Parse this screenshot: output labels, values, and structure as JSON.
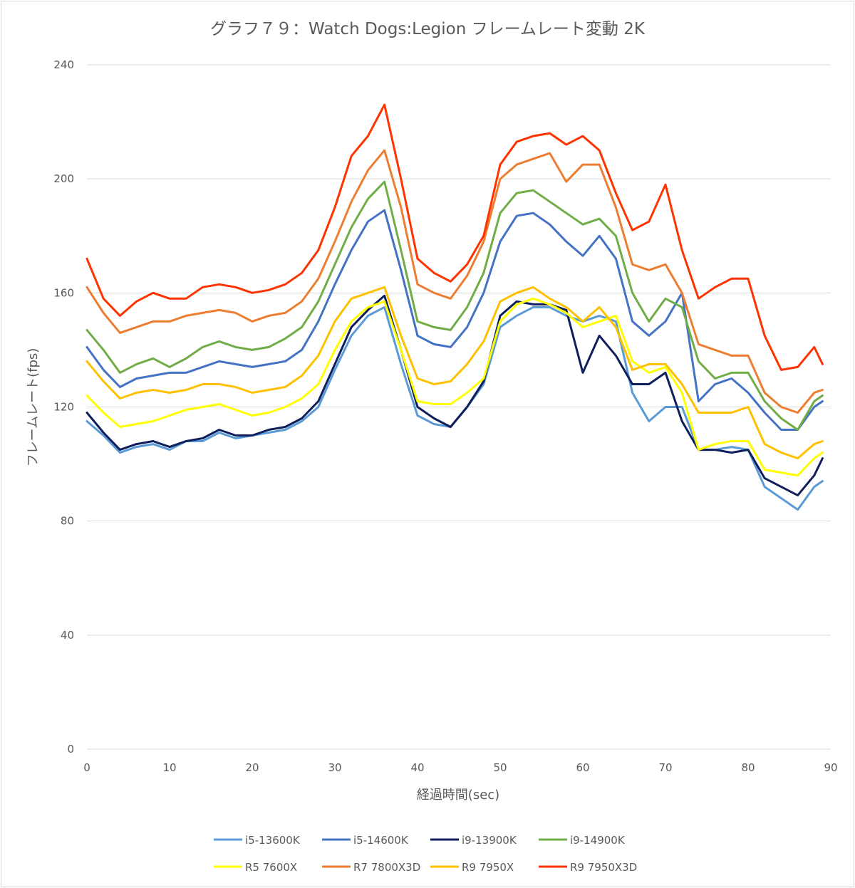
{
  "chart_data": {
    "type": "line",
    "title": "グラフ７９：Watch Dogs:Legion フレームレート変動 2K",
    "xlabel": "経過時間(sec)",
    "ylabel": "フレームレート(fps)",
    "xlim": [
      0,
      90
    ],
    "ylim": [
      0,
      240
    ],
    "xticks": [
      "0",
      "10",
      "20",
      "30",
      "40",
      "50",
      "60",
      "70",
      "80",
      "90"
    ],
    "yticks": [
      "0",
      "40",
      "80",
      "120",
      "160",
      "200",
      "240"
    ],
    "grid": true,
    "legend_position": "bottom",
    "series": [
      {
        "name": "i5-13600K",
        "color": "#5B9BD5",
        "x": [
          0,
          2,
          4,
          6,
          8,
          10,
          12,
          14,
          16,
          18,
          20,
          22,
          24,
          26,
          28,
          30,
          32,
          34,
          36,
          38,
          40,
          42,
          44,
          46,
          48,
          50,
          52,
          54,
          56,
          58,
          60,
          62,
          64,
          66,
          68,
          70,
          72,
          74,
          76,
          78,
          80,
          82,
          84,
          86,
          88,
          89
        ],
        "y": [
          115,
          110,
          104,
          106,
          107,
          105,
          108,
          108,
          111,
          109,
          110,
          111,
          112,
          115,
          120,
          133,
          145,
          152,
          155,
          135,
          117,
          114,
          113,
          120,
          128,
          148,
          152,
          155,
          155,
          152,
          150,
          152,
          150,
          125,
          115,
          120,
          120,
          105,
          105,
          106,
          105,
          92,
          88,
          84,
          92,
          94
        ]
      },
      {
        "name": "i5-14600K",
        "color": "#4472C4",
        "x": [
          0,
          2,
          4,
          6,
          8,
          10,
          12,
          14,
          16,
          18,
          20,
          22,
          24,
          26,
          28,
          30,
          32,
          34,
          36,
          38,
          40,
          42,
          44,
          46,
          48,
          50,
          52,
          54,
          56,
          58,
          60,
          62,
          64,
          66,
          68,
          70,
          72,
          74,
          76,
          78,
          80,
          82,
          84,
          86,
          88,
          89
        ],
        "y": [
          141,
          133,
          127,
          130,
          131,
          132,
          132,
          134,
          136,
          135,
          134,
          135,
          136,
          140,
          150,
          163,
          175,
          185,
          189,
          168,
          145,
          142,
          141,
          148,
          160,
          178,
          187,
          188,
          184,
          178,
          173,
          180,
          172,
          150,
          145,
          150,
          160,
          122,
          128,
          130,
          125,
          118,
          112,
          112,
          120,
          122
        ]
      },
      {
        "name": "i9-13900K",
        "color": "#0F1F5C",
        "x": [
          0,
          2,
          4,
          6,
          8,
          10,
          12,
          14,
          16,
          18,
          20,
          22,
          24,
          26,
          28,
          30,
          32,
          34,
          36,
          38,
          40,
          42,
          44,
          46,
          48,
          50,
          52,
          54,
          56,
          58,
          60,
          62,
          64,
          66,
          68,
          70,
          72,
          74,
          76,
          78,
          80,
          82,
          84,
          86,
          88,
          89
        ],
        "y": [
          118,
          111,
          105,
          107,
          108,
          106,
          108,
          109,
          112,
          110,
          110,
          112,
          113,
          116,
          122,
          135,
          148,
          154,
          159,
          140,
          120,
          116,
          113,
          120,
          129,
          152,
          157,
          156,
          156,
          154,
          132,
          145,
          138,
          128,
          128,
          132,
          115,
          105,
          105,
          104,
          105,
          95,
          92,
          89,
          96,
          102
        ]
      },
      {
        "name": "i9-14900K",
        "color": "#70AD47",
        "x": [
          0,
          2,
          4,
          6,
          8,
          10,
          12,
          14,
          16,
          18,
          20,
          22,
          24,
          26,
          28,
          30,
          32,
          34,
          36,
          38,
          40,
          42,
          44,
          46,
          48,
          50,
          52,
          54,
          56,
          58,
          60,
          62,
          64,
          66,
          68,
          70,
          72,
          74,
          76,
          78,
          80,
          82,
          84,
          86,
          88,
          89
        ],
        "y": [
          147,
          140,
          132,
          135,
          137,
          134,
          137,
          141,
          143,
          141,
          140,
          141,
          144,
          148,
          157,
          170,
          183,
          193,
          199,
          175,
          150,
          148,
          147,
          155,
          167,
          188,
          195,
          196,
          192,
          188,
          184,
          186,
          180,
          160,
          150,
          158,
          155,
          136,
          130,
          132,
          132,
          122,
          116,
          112,
          122,
          124
        ]
      },
      {
        "name": "R5 7600X",
        "color": "#FFFF00",
        "x": [
          0,
          2,
          4,
          6,
          8,
          10,
          12,
          14,
          16,
          18,
          20,
          22,
          24,
          26,
          28,
          30,
          32,
          34,
          36,
          38,
          40,
          42,
          44,
          46,
          48,
          50,
          52,
          54,
          56,
          58,
          60,
          62,
          64,
          66,
          68,
          70,
          72,
          74,
          76,
          78,
          80,
          82,
          84,
          86,
          88,
          89
        ],
        "y": [
          124,
          118,
          113,
          114,
          115,
          117,
          119,
          120,
          121,
          119,
          117,
          118,
          120,
          123,
          128,
          140,
          150,
          155,
          157,
          140,
          122,
          121,
          121,
          125,
          130,
          150,
          156,
          158,
          156,
          153,
          148,
          150,
          152,
          136,
          132,
          134,
          125,
          105,
          107,
          108,
          108,
          98,
          97,
          96,
          102,
          104
        ]
      },
      {
        "name": "R7 7800X3D",
        "color": "#ED7D31",
        "x": [
          0,
          2,
          4,
          6,
          8,
          10,
          12,
          14,
          16,
          18,
          20,
          22,
          24,
          26,
          28,
          30,
          32,
          34,
          36,
          38,
          40,
          42,
          44,
          46,
          48,
          50,
          52,
          54,
          56,
          58,
          60,
          62,
          64,
          66,
          68,
          70,
          72,
          74,
          76,
          78,
          80,
          82,
          84,
          86,
          88,
          89
        ],
        "y": [
          162,
          153,
          146,
          148,
          150,
          150,
          152,
          153,
          154,
          153,
          150,
          152,
          153,
          157,
          165,
          178,
          192,
          203,
          210,
          190,
          163,
          160,
          158,
          166,
          178,
          200,
          205,
          207,
          209,
          199,
          205,
          205,
          190,
          170,
          168,
          170,
          160,
          142,
          140,
          138,
          138,
          125,
          120,
          118,
          125,
          126
        ]
      },
      {
        "name": "R9 7950X",
        "color": "#FFC000",
        "x": [
          0,
          2,
          4,
          6,
          8,
          10,
          12,
          14,
          16,
          18,
          20,
          22,
          24,
          26,
          28,
          30,
          32,
          34,
          36,
          38,
          40,
          42,
          44,
          46,
          48,
          50,
          52,
          54,
          56,
          58,
          60,
          62,
          64,
          66,
          68,
          70,
          72,
          74,
          76,
          78,
          80,
          82,
          84,
          86,
          88,
          89
        ],
        "y": [
          136,
          129,
          123,
          125,
          126,
          125,
          126,
          128,
          128,
          127,
          125,
          126,
          127,
          131,
          138,
          150,
          158,
          160,
          162,
          145,
          130,
          128,
          129,
          135,
          143,
          157,
          160,
          162,
          158,
          155,
          150,
          155,
          148,
          133,
          135,
          135,
          128,
          118,
          118,
          118,
          120,
          107,
          104,
          102,
          107,
          108
        ]
      },
      {
        "name": "R9 7950X3D",
        "color": "#FF3300",
        "x": [
          0,
          2,
          4,
          6,
          8,
          10,
          12,
          14,
          16,
          18,
          20,
          22,
          24,
          26,
          28,
          30,
          32,
          34,
          36,
          38,
          40,
          42,
          44,
          46,
          48,
          50,
          52,
          54,
          56,
          58,
          60,
          62,
          64,
          66,
          68,
          70,
          72,
          74,
          76,
          78,
          80,
          82,
          84,
          86,
          88,
          89
        ],
        "y": [
          172,
          158,
          152,
          157,
          160,
          158,
          158,
          162,
          163,
          162,
          160,
          161,
          163,
          167,
          175,
          190,
          208,
          215,
          226,
          200,
          172,
          167,
          164,
          170,
          180,
          205,
          213,
          215,
          216,
          212,
          215,
          210,
          195,
          182,
          185,
          198,
          175,
          158,
          162,
          165,
          165,
          145,
          133,
          134,
          141,
          135
        ]
      }
    ]
  }
}
